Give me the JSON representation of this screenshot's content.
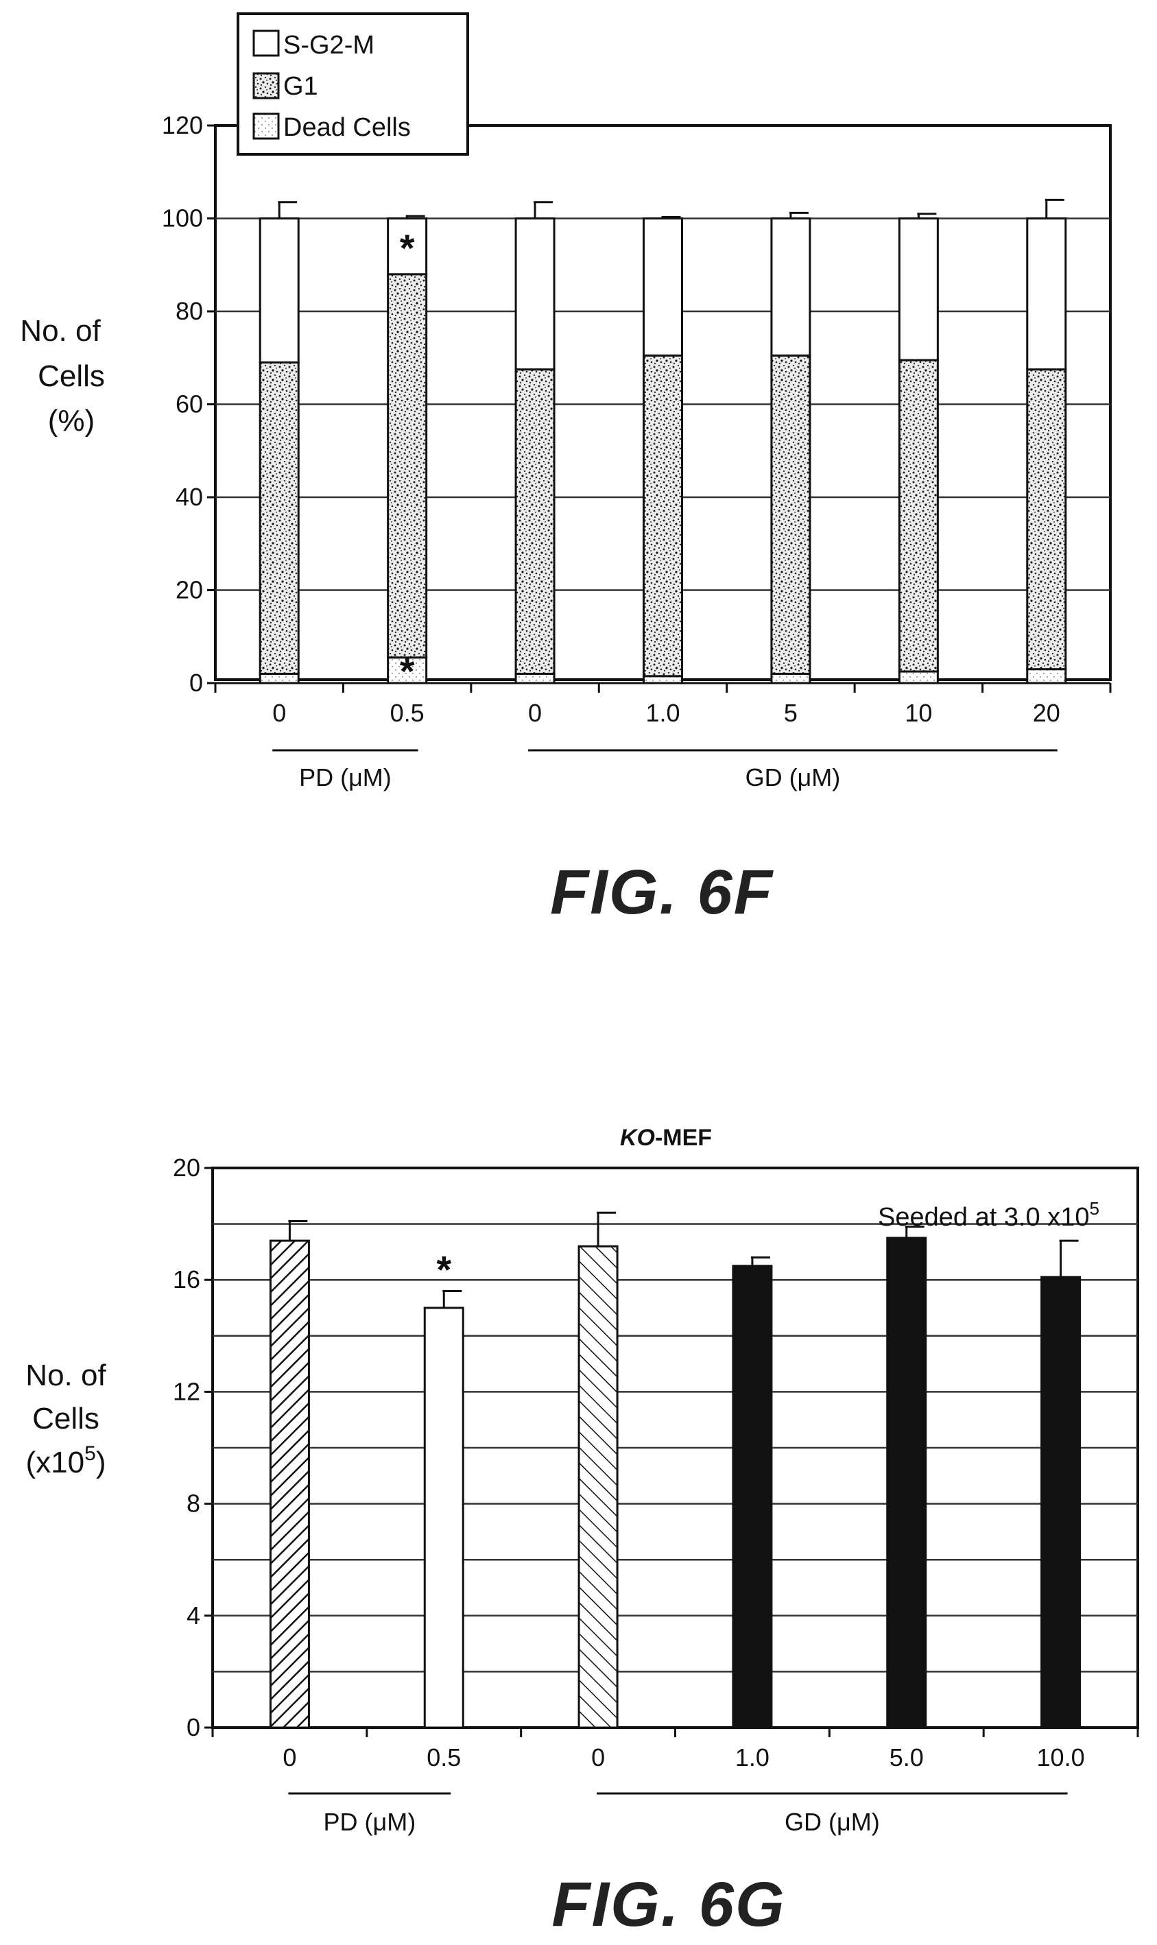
{
  "chart_data": [
    {
      "id": "6F",
      "type": "bar",
      "stacked": true,
      "caption": "FIG. 6F",
      "ylabel_lines": [
        "No. of",
        "Cells",
        "(%)"
      ],
      "ylim": [
        0,
        120
      ],
      "yticks": [
        0,
        20,
        40,
        60,
        80,
        100,
        120
      ],
      "grid": true,
      "categories": [
        "0",
        "0.5",
        "0",
        "1.0",
        "5",
        "10",
        "20"
      ],
      "groups": [
        {
          "label": "PD (μM)",
          "from": 0,
          "to": 1
        },
        {
          "label": "GD (μM)",
          "from": 2,
          "to": 6
        }
      ],
      "legend": {
        "position": "top-left",
        "entries": [
          {
            "label": "S-G2-M",
            "pattern": "white"
          },
          {
            "label": "G1",
            "pattern": "dense-speckle"
          },
          {
            "label": "Dead Cells",
            "pattern": "light-dots"
          }
        ]
      },
      "series": [
        {
          "name": "Dead Cells",
          "pattern": "light-dots",
          "values": [
            2,
            5.5,
            2,
            1.5,
            2,
            2.5,
            3
          ],
          "errors": [
            0.5,
            2,
            0.5,
            0.3,
            1,
            0.8,
            0.8
          ]
        },
        {
          "name": "G1",
          "pattern": "dense-speckle",
          "values": [
            67,
            82.5,
            65.5,
            69,
            68.5,
            67,
            64.5
          ],
          "errors": [
            4,
            2.5,
            4,
            0.5,
            0.8,
            1.5,
            4.5
          ]
        },
        {
          "name": "S-G2-M",
          "pattern": "white",
          "values": [
            31,
            12,
            32.5,
            29.5,
            29.5,
            30.5,
            32.5
          ],
          "errors": [
            3.5,
            0.5,
            3.5,
            0.3,
            1.2,
            1,
            4
          ]
        }
      ],
      "annotations": [
        {
          "text": "*",
          "category": 1,
          "series": "S-G2-M"
        },
        {
          "text": "*",
          "category": 1,
          "series": "Dead Cells"
        }
      ]
    },
    {
      "id": "6G",
      "type": "bar",
      "caption": "FIG. 6G",
      "title": "KO-MEF",
      "title_parts": {
        "italic": "KO",
        "normal": "-MEF"
      },
      "ylabel_lines": [
        "No. of",
        "Cells",
        "(x10",
        "5",
        ")"
      ],
      "ylim": [
        0,
        20
      ],
      "yticks": [
        0,
        4,
        8,
        12,
        16,
        20
      ],
      "minor_grid": [
        2,
        6,
        10,
        14,
        18
      ],
      "grid": true,
      "categories": [
        "0",
        "0.5",
        "0",
        "1.0",
        "5.0",
        "10.0"
      ],
      "groups": [
        {
          "label": "PD (μM)",
          "from": 0,
          "to": 1
        },
        {
          "label": "GD (μM)",
          "from": 2,
          "to": 5
        }
      ],
      "values": [
        17.4,
        15.0,
        17.2,
        16.5,
        17.5,
        16.1
      ],
      "errors": [
        0.7,
        0.6,
        1.2,
        0.3,
        0.4,
        1.3
      ],
      "patterns": [
        "hatch-dense",
        "white",
        "hatch-sparse",
        "black",
        "black",
        "black"
      ],
      "reference_line": {
        "y": 18,
        "label": "Seeded at 3.0 x10",
        "label_sup": "5"
      },
      "annotations": [
        {
          "text": "*",
          "category": 1
        }
      ]
    }
  ]
}
